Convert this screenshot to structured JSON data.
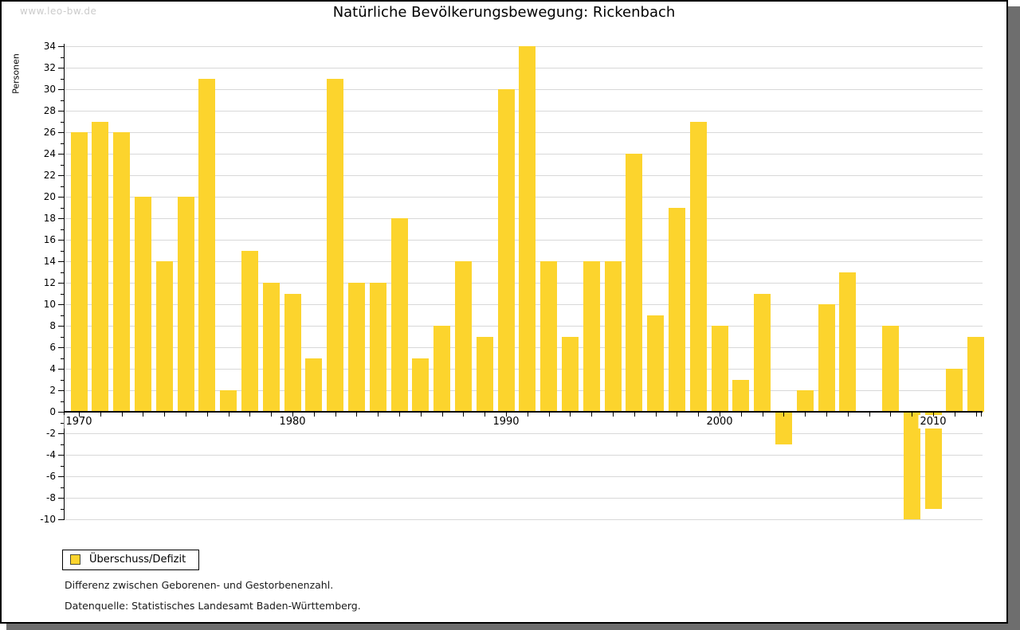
{
  "watermark": "www.leo-bw.de",
  "title": "Natürliche Bevölkerungsbewegung: Rickenbach",
  "legend": {
    "label": "Überschuss/Defizit"
  },
  "notes": {
    "description": "Differenz zwischen Geborenen- und Gestorbenenzahl.",
    "source": "Datenquelle: Statistisches Landesamt Baden-Württemberg."
  },
  "colors": {
    "bar": "#fcd42d",
    "grid": "#d8d8d8",
    "axis": "#000000",
    "shadow": "#6e6e6e",
    "watermark": "#cbcbcb"
  },
  "chart_data": {
    "type": "bar",
    "title": "Natürliche Bevölkerungsbewegung: Rickenbach",
    "xlabel": "",
    "ylabel": "Personen",
    "ylim": [
      -10,
      34
    ],
    "ytick_step": 2,
    "grid": true,
    "legend_position": "bottom-left",
    "legend_entries": [
      "Überschuss/Defizit"
    ],
    "x": [
      1970,
      1971,
      1972,
      1973,
      1974,
      1975,
      1976,
      1977,
      1978,
      1979,
      1980,
      1981,
      1982,
      1983,
      1984,
      1985,
      1986,
      1987,
      1988,
      1989,
      1990,
      1991,
      1992,
      1993,
      1994,
      1995,
      1996,
      1997,
      1998,
      1999,
      2000,
      2001,
      2002,
      2003,
      2004,
      2005,
      2006,
      2007,
      2008,
      2009,
      2010,
      2011,
      2012
    ],
    "values": [
      26,
      27,
      26,
      20,
      14,
      20,
      31,
      2,
      15,
      12,
      11,
      5,
      31,
      12,
      12,
      18,
      5,
      8,
      14,
      7,
      30,
      34,
      14,
      7,
      14,
      14,
      24,
      9,
      19,
      27,
      8,
      3,
      11,
      -3,
      2,
      10,
      13,
      0,
      8,
      -10,
      -9,
      4,
      7
    ],
    "x_labeled_ticks": [
      1970,
      1980,
      1990,
      2000,
      2010
    ]
  }
}
